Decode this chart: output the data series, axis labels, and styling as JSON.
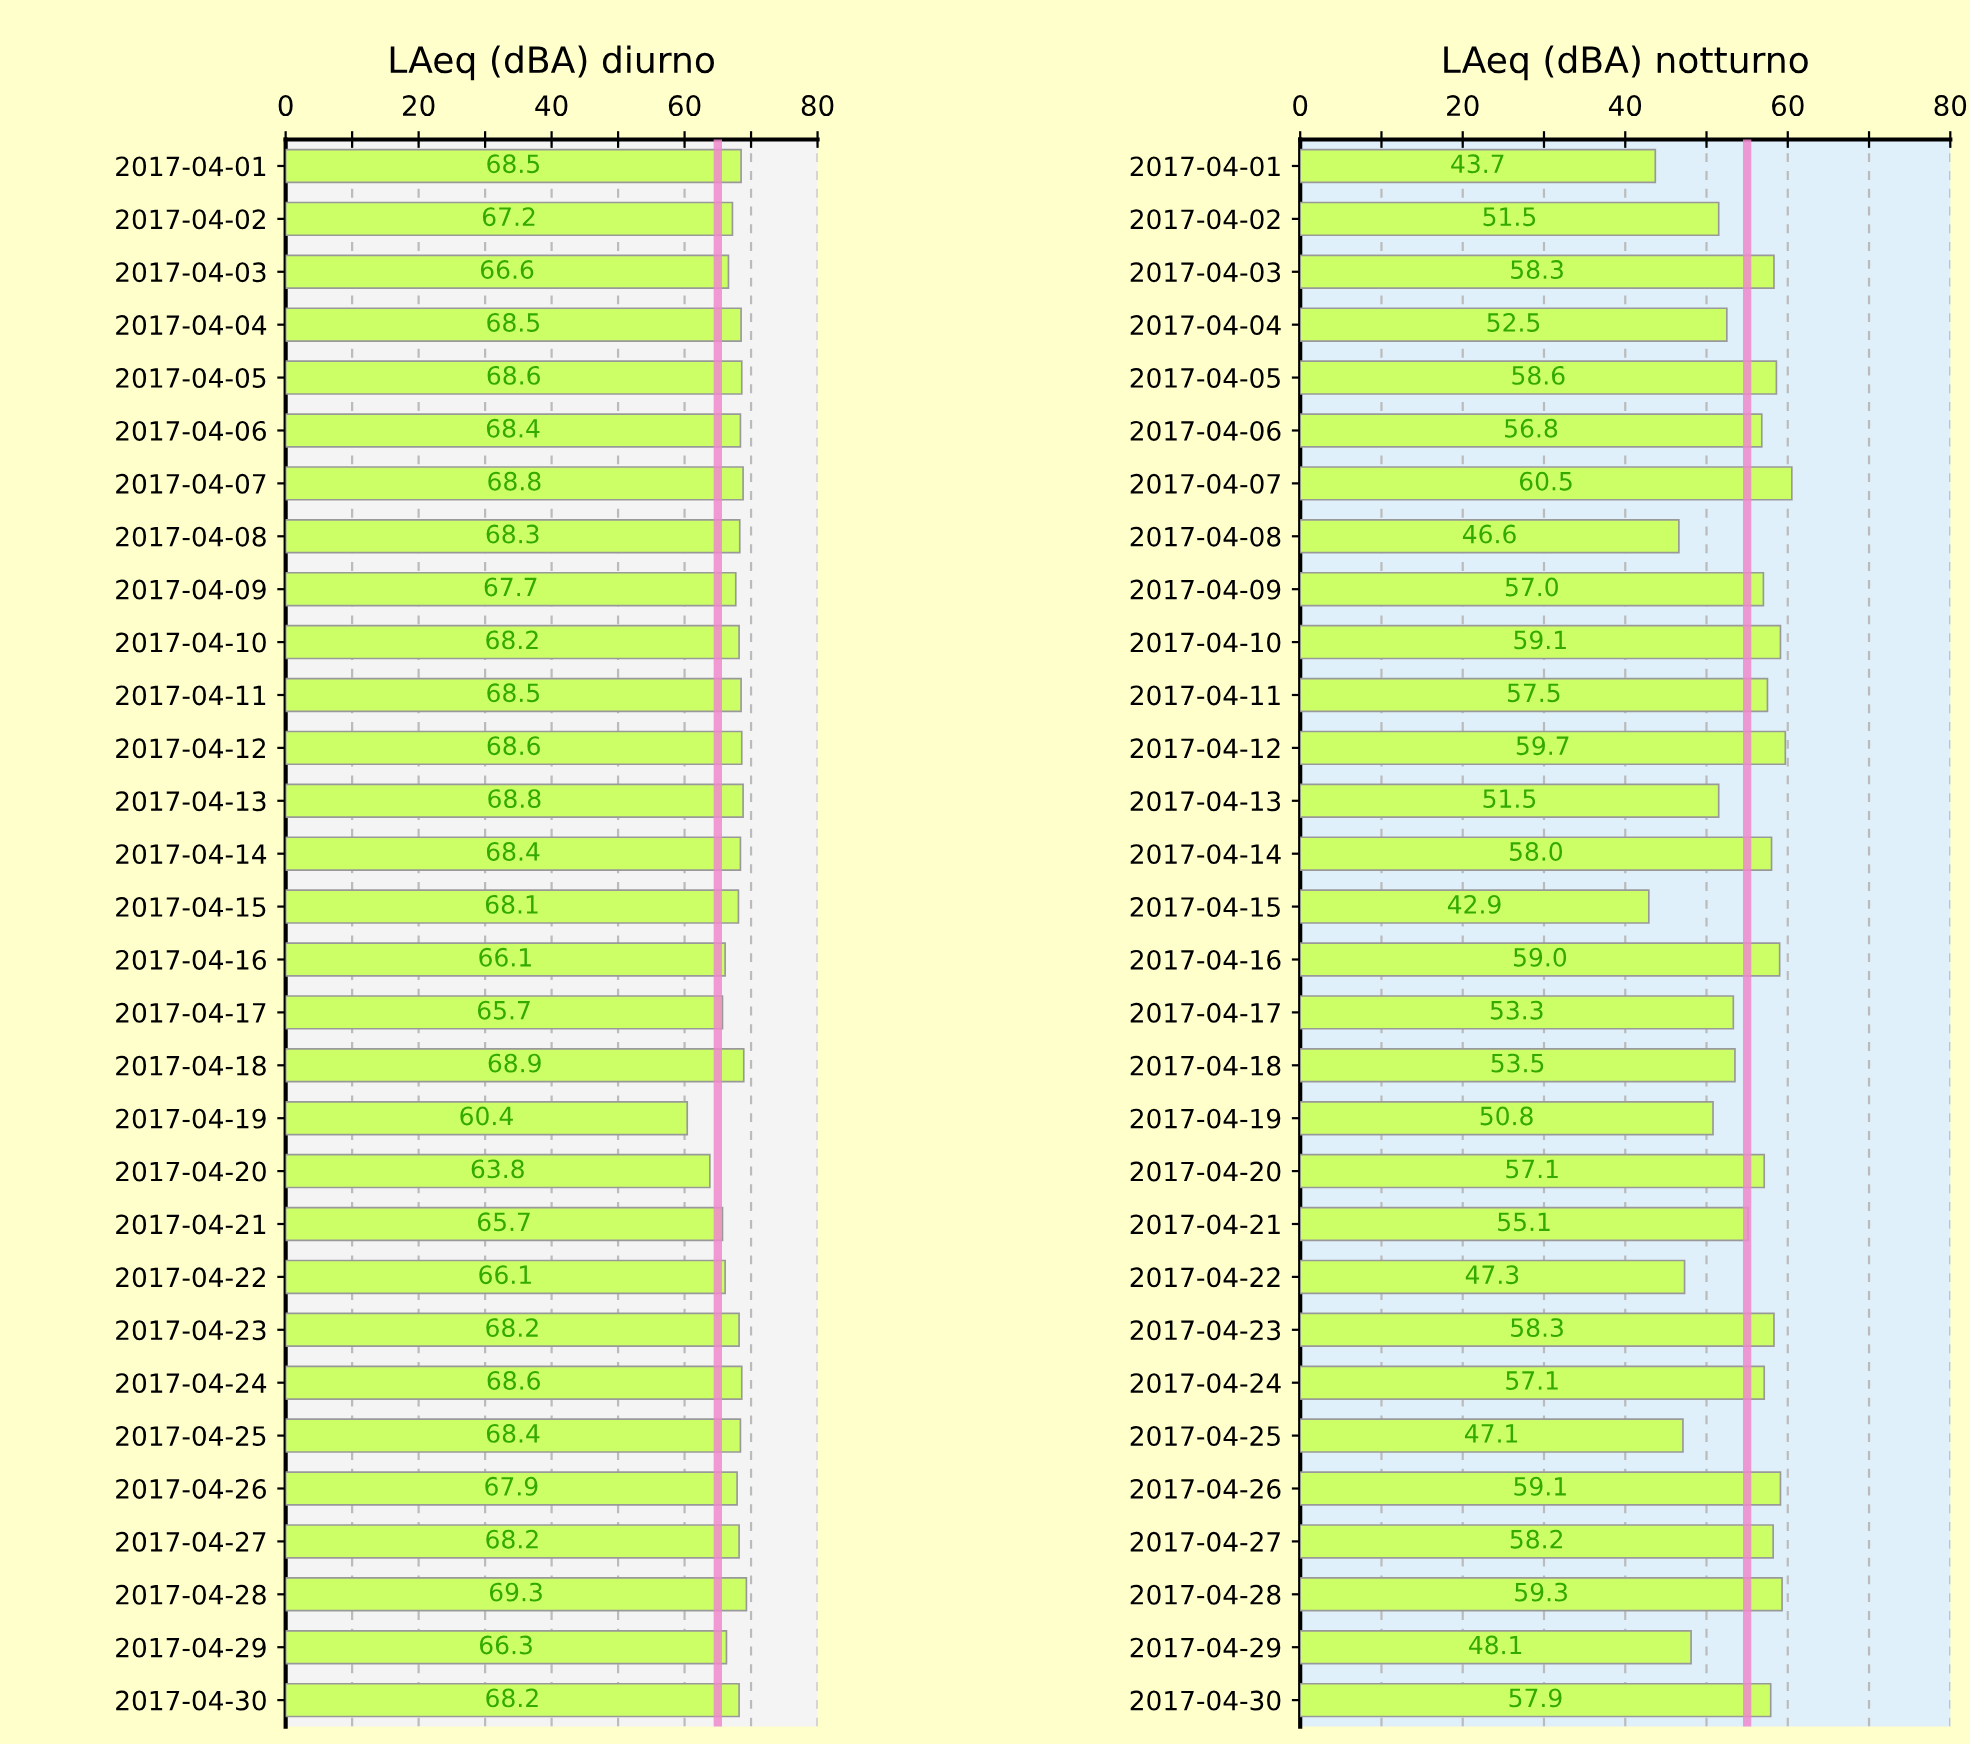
{
  "chart_data": [
    {
      "type": "bar",
      "orientation": "horizontal",
      "title": "LAeq (dBA) diurno",
      "categories": [
        "2017-04-01",
        "2017-04-02",
        "2017-04-03",
        "2017-04-04",
        "2017-04-05",
        "2017-04-06",
        "2017-04-07",
        "2017-04-08",
        "2017-04-09",
        "2017-04-10",
        "2017-04-11",
        "2017-04-12",
        "2017-04-13",
        "2017-04-14",
        "2017-04-15",
        "2017-04-16",
        "2017-04-17",
        "2017-04-18",
        "2017-04-19",
        "2017-04-20",
        "2017-04-21",
        "2017-04-22",
        "2017-04-23",
        "2017-04-24",
        "2017-04-25",
        "2017-04-26",
        "2017-04-27",
        "2017-04-28",
        "2017-04-29",
        "2017-04-30"
      ],
      "values": [
        68.5,
        67.2,
        66.6,
        68.5,
        68.6,
        68.4,
        68.8,
        68.3,
        67.7,
        68.2,
        68.5,
        68.6,
        68.8,
        68.4,
        68.1,
        66.1,
        65.7,
        68.9,
        60.4,
        63.8,
        65.7,
        66.1,
        68.2,
        68.6,
        68.4,
        67.9,
        68.2,
        69.3,
        66.3,
        68.2
      ],
      "color": "#ccff66",
      "data_labels": true,
      "xlim": [
        0,
        80
      ],
      "xticks": [
        0,
        {
          "value": 10,
          "label": null
        },
        20,
        {
          "value": 30,
          "label": null
        },
        40,
        {
          "value": 50,
          "label": null
        },
        60,
        {
          "value": 70,
          "label": null
        },
        80
      ],
      "grid": "x",
      "ref_lines": [
        {
          "axis": "x",
          "value": 65,
          "label": null,
          "color": "#ee88cc"
        }
      ]
    },
    {
      "type": "bar",
      "orientation": "horizontal",
      "title": "LAeq (dBA) notturno",
      "categories": [
        "2017-04-01",
        "2017-04-02",
        "2017-04-03",
        "2017-04-04",
        "2017-04-05",
        "2017-04-06",
        "2017-04-07",
        "2017-04-08",
        "2017-04-09",
        "2017-04-10",
        "2017-04-11",
        "2017-04-12",
        "2017-04-13",
        "2017-04-14",
        "2017-04-15",
        "2017-04-16",
        "2017-04-17",
        "2017-04-18",
        "2017-04-19",
        "2017-04-20",
        "2017-04-21",
        "2017-04-22",
        "2017-04-23",
        "2017-04-24",
        "2017-04-25",
        "2017-04-26",
        "2017-04-27",
        "2017-04-28",
        "2017-04-29",
        "2017-04-30"
      ],
      "values": [
        43.7,
        51.5,
        58.3,
        52.5,
        58.6,
        56.8,
        60.5,
        46.6,
        57.0,
        59.1,
        57.5,
        59.7,
        51.5,
        58.0,
        42.9,
        59.0,
        53.3,
        53.5,
        50.8,
        57.1,
        55.1,
        47.3,
        58.3,
        57.1,
        47.1,
        59.1,
        58.2,
        59.3,
        48.1,
        57.9
      ],
      "value_labels": [
        "43.7",
        "51.5",
        "58.3",
        "52.5",
        "58.6",
        "56.8",
        "60.5",
        "46.6",
        "57.0",
        "59.1",
        "57.5",
        "59.7",
        "51.5",
        "58.0",
        "42.9",
        "59.0",
        "53.3",
        "53.5",
        "50.8",
        "57.1",
        "55.1",
        "47.3",
        "58.3",
        "57.1",
        "47.1",
        "59.1",
        "58.2",
        "59.3",
        "48.1",
        "57.9"
      ],
      "color": "#ccff66",
      "xlim": [
        0,
        80
      ],
      "xticks": [
        0,
        {
          "value": 10,
          "label": null
        },
        20,
        {
          "value": 30,
          "label": null
        },
        40,
        {
          "value": 50,
          "label": null
        },
        60,
        {
          "value": 70,
          "label": null
        },
        80
      ],
      "grid": "x",
      "ref_lines": [
        {
          "axis": "x",
          "value": 55,
          "label": null,
          "color": "#ee88cc"
        }
      ]
    }
  ]
}
